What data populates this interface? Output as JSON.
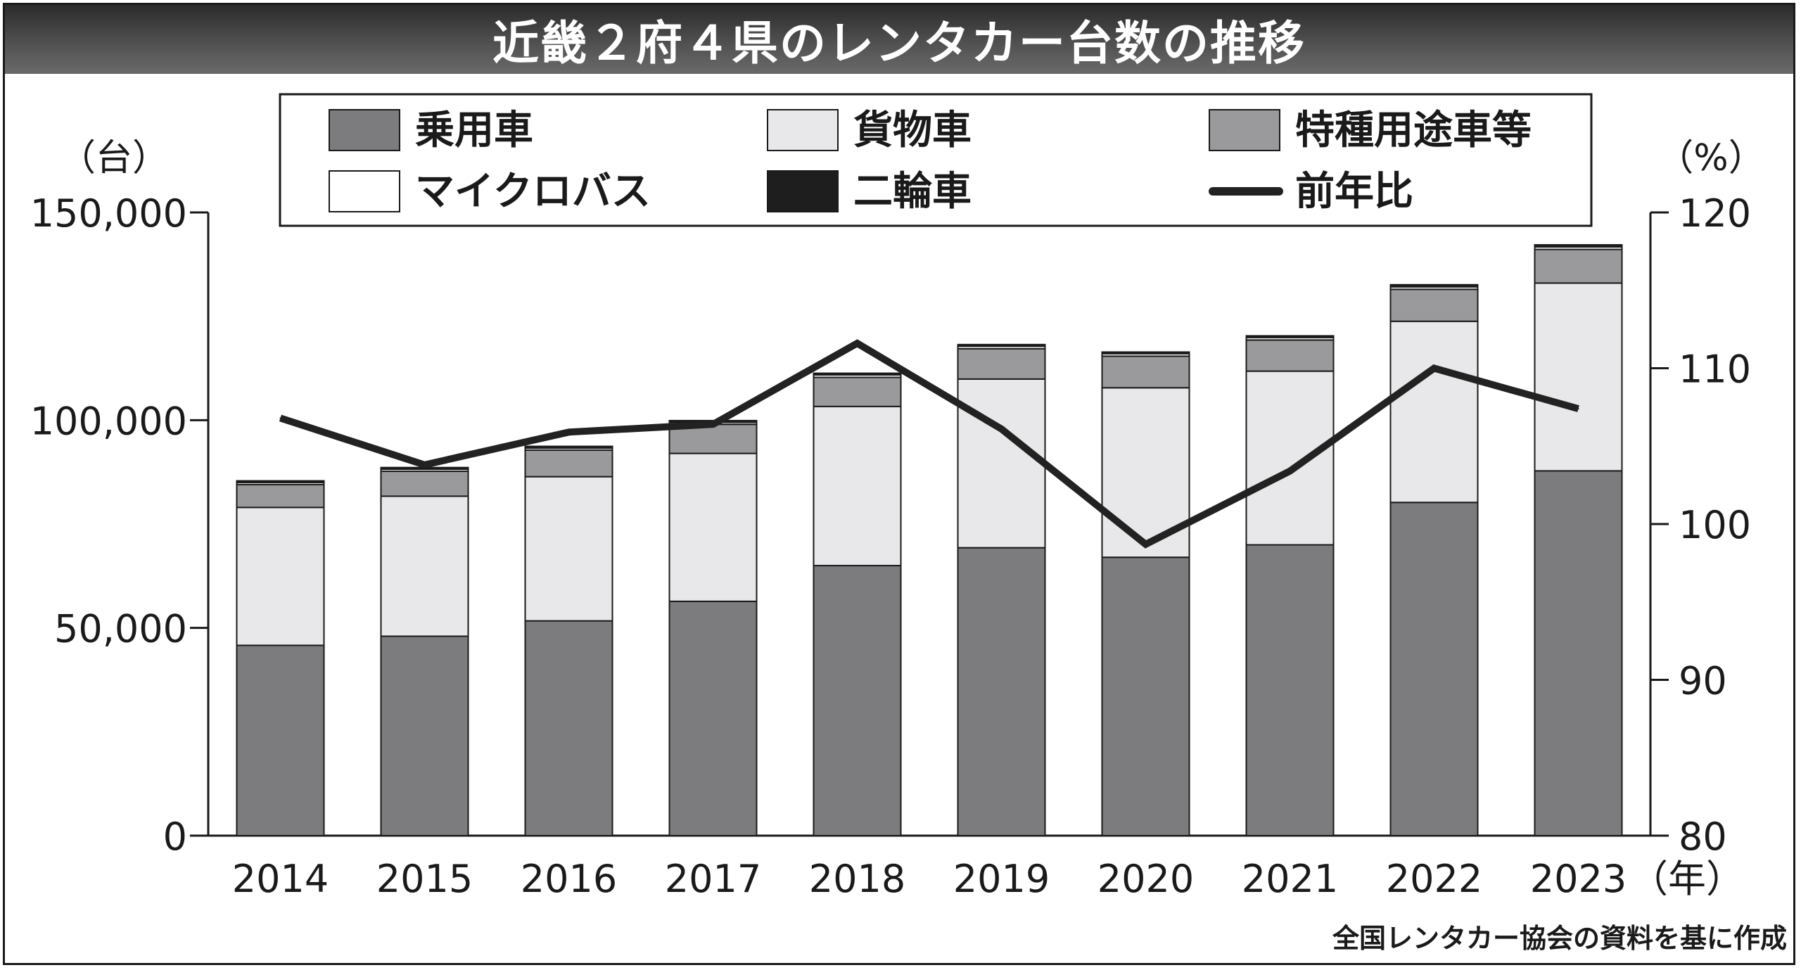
{
  "title": "近畿２府４県のレンタカー台数の推移",
  "source": "全国レンタカー協会の資料を基に作成",
  "chart_data": {
    "type": "bar",
    "stacked": true,
    "title": "近畿２府４県のレンタカー台数の推移",
    "categories": [
      "2014",
      "2015",
      "2016",
      "2017",
      "2018",
      "2019",
      "2020",
      "2021",
      "2022",
      "2023"
    ],
    "x_unit": "（年）",
    "y_left": {
      "unit": "（台）",
      "ylim": [
        0,
        150000
      ],
      "ticks": [
        0,
        50000,
        100000,
        150000
      ],
      "tick_labels": [
        "0",
        "50,000",
        "100,000",
        "150,000"
      ]
    },
    "y_right": {
      "unit": "（%）",
      "ylim": [
        80,
        120
      ],
      "ticks": [
        80,
        90,
        100,
        110,
        120
      ],
      "tick_labels": [
        "80",
        "90",
        "100",
        "110",
        "120"
      ]
    },
    "series": [
      {
        "name": "乗用車",
        "color": "#7c7c7e",
        "values": [
          45800,
          48000,
          51700,
          56400,
          65000,
          69300,
          67000,
          70000,
          80200,
          87800
        ]
      },
      {
        "name": "貨物車",
        "color": "#e8e8ea",
        "values": [
          33200,
          33700,
          34700,
          35600,
          38300,
          40600,
          40800,
          41800,
          43600,
          45200
        ]
      },
      {
        "name": "特種用途車等",
        "color": "#9a9a9c",
        "values": [
          5500,
          6000,
          6400,
          7000,
          7000,
          7300,
          7600,
          7500,
          7700,
          8100
        ]
      },
      {
        "name": "マイクロバス",
        "color": "#ffffff",
        "values": [
          500,
          500,
          500,
          500,
          600,
          600,
          600,
          600,
          600,
          600
        ]
      },
      {
        "name": "二輪車",
        "color": "#1e1e1e",
        "values": [
          400,
          400,
          400,
          400,
          400,
          400,
          400,
          400,
          500,
          500
        ]
      }
    ],
    "line": {
      "name": "前年比",
      "color": "#222222",
      "axis": "right",
      "values": [
        106.8,
        103.8,
        105.9,
        106.4,
        111.6,
        106.1,
        98.7,
        103.4,
        110.0,
        107.4
      ]
    },
    "legend_position": "top"
  }
}
